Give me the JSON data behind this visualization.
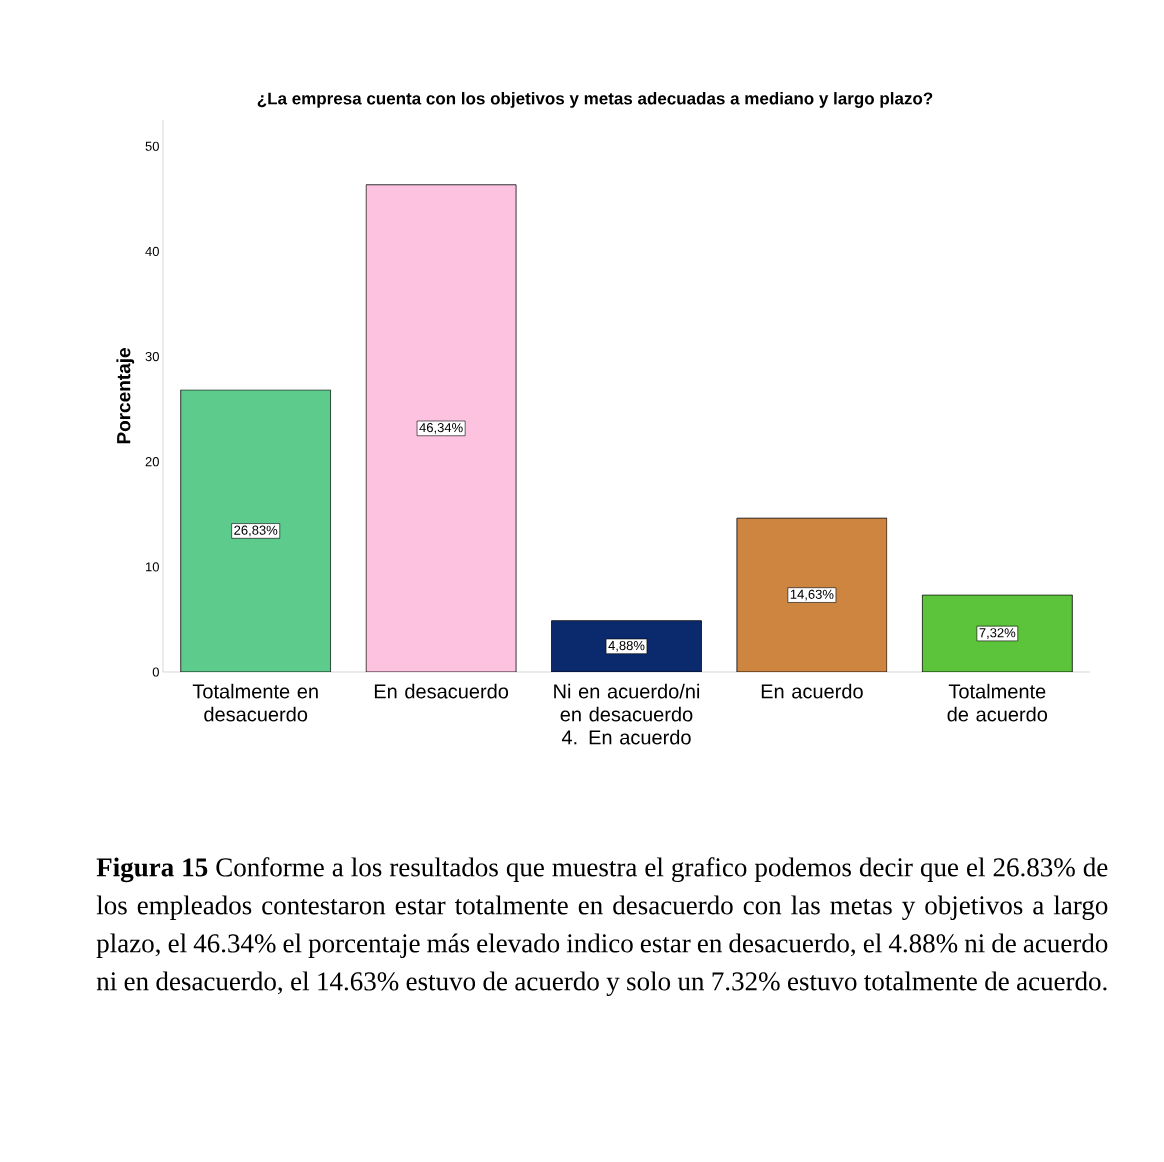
{
  "chart_data": {
    "type": "bar",
    "title": "¿La empresa cuenta con los objetivos y metas adecuadas a mediano y largo plazo?",
    "ylabel": "Porcentaje",
    "categories": [
      "Totalmente en desacuerdo",
      "En desacuerdo",
      "Ni en acuerdo/ni en desacuerdo 4. En acuerdo",
      "En acuerdo",
      "Totalmente de acuerdo"
    ],
    "values": [
      26.83,
      46.34,
      4.88,
      14.63,
      7.32
    ],
    "colors": [
      "#5ccb8b",
      "#fcc2e0",
      "#0b2a6e",
      "#cd8540",
      "#5cc43a"
    ],
    "value_labels": [
      "26,83%",
      "46,34%",
      "4,88%",
      "14,63%",
      "7,32%"
    ],
    "ylim": [
      0,
      52.5
    ],
    "yticks": [
      0,
      10,
      20,
      30,
      40,
      50
    ],
    "grid": false,
    "annotations": [
      "**Figura 15** Conforme a los resultados que muestra el grafico podemos decir que el 26.83%  de los empleados contestaron estar totalmente en  desacuerdo con las metas y objetivos a largo plazo, el 46.34% el porcentaje más elevado indico estar en desacuerdo, el 4.88% ni de acuerdo ni en desacuerdo, el 14.63% estuvo de acuerdo y solo un  7.32% estuvo totalmente de acuerdo."
    ]
  }
}
